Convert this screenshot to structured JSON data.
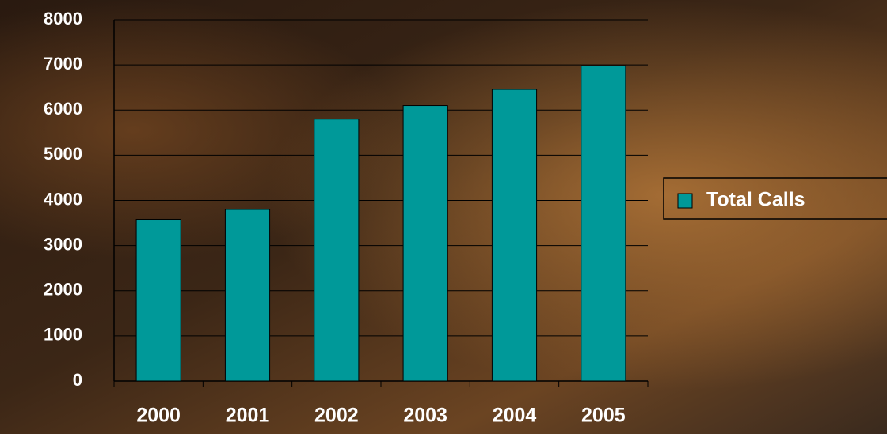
{
  "chart_data": {
    "type": "bar",
    "categories": [
      "2000",
      "2001",
      "2002",
      "2003",
      "2004",
      "2005"
    ],
    "series": [
      {
        "name": "Total Calls",
        "color": "#009999",
        "values": [
          3580,
          3800,
          5800,
          6100,
          6460,
          6980
        ]
      }
    ],
    "ylim": [
      0,
      8000
    ],
    "yticks": [
      0,
      1000,
      2000,
      3000,
      4000,
      5000,
      6000,
      7000,
      8000
    ],
    "grid": true,
    "legend": "right"
  }
}
